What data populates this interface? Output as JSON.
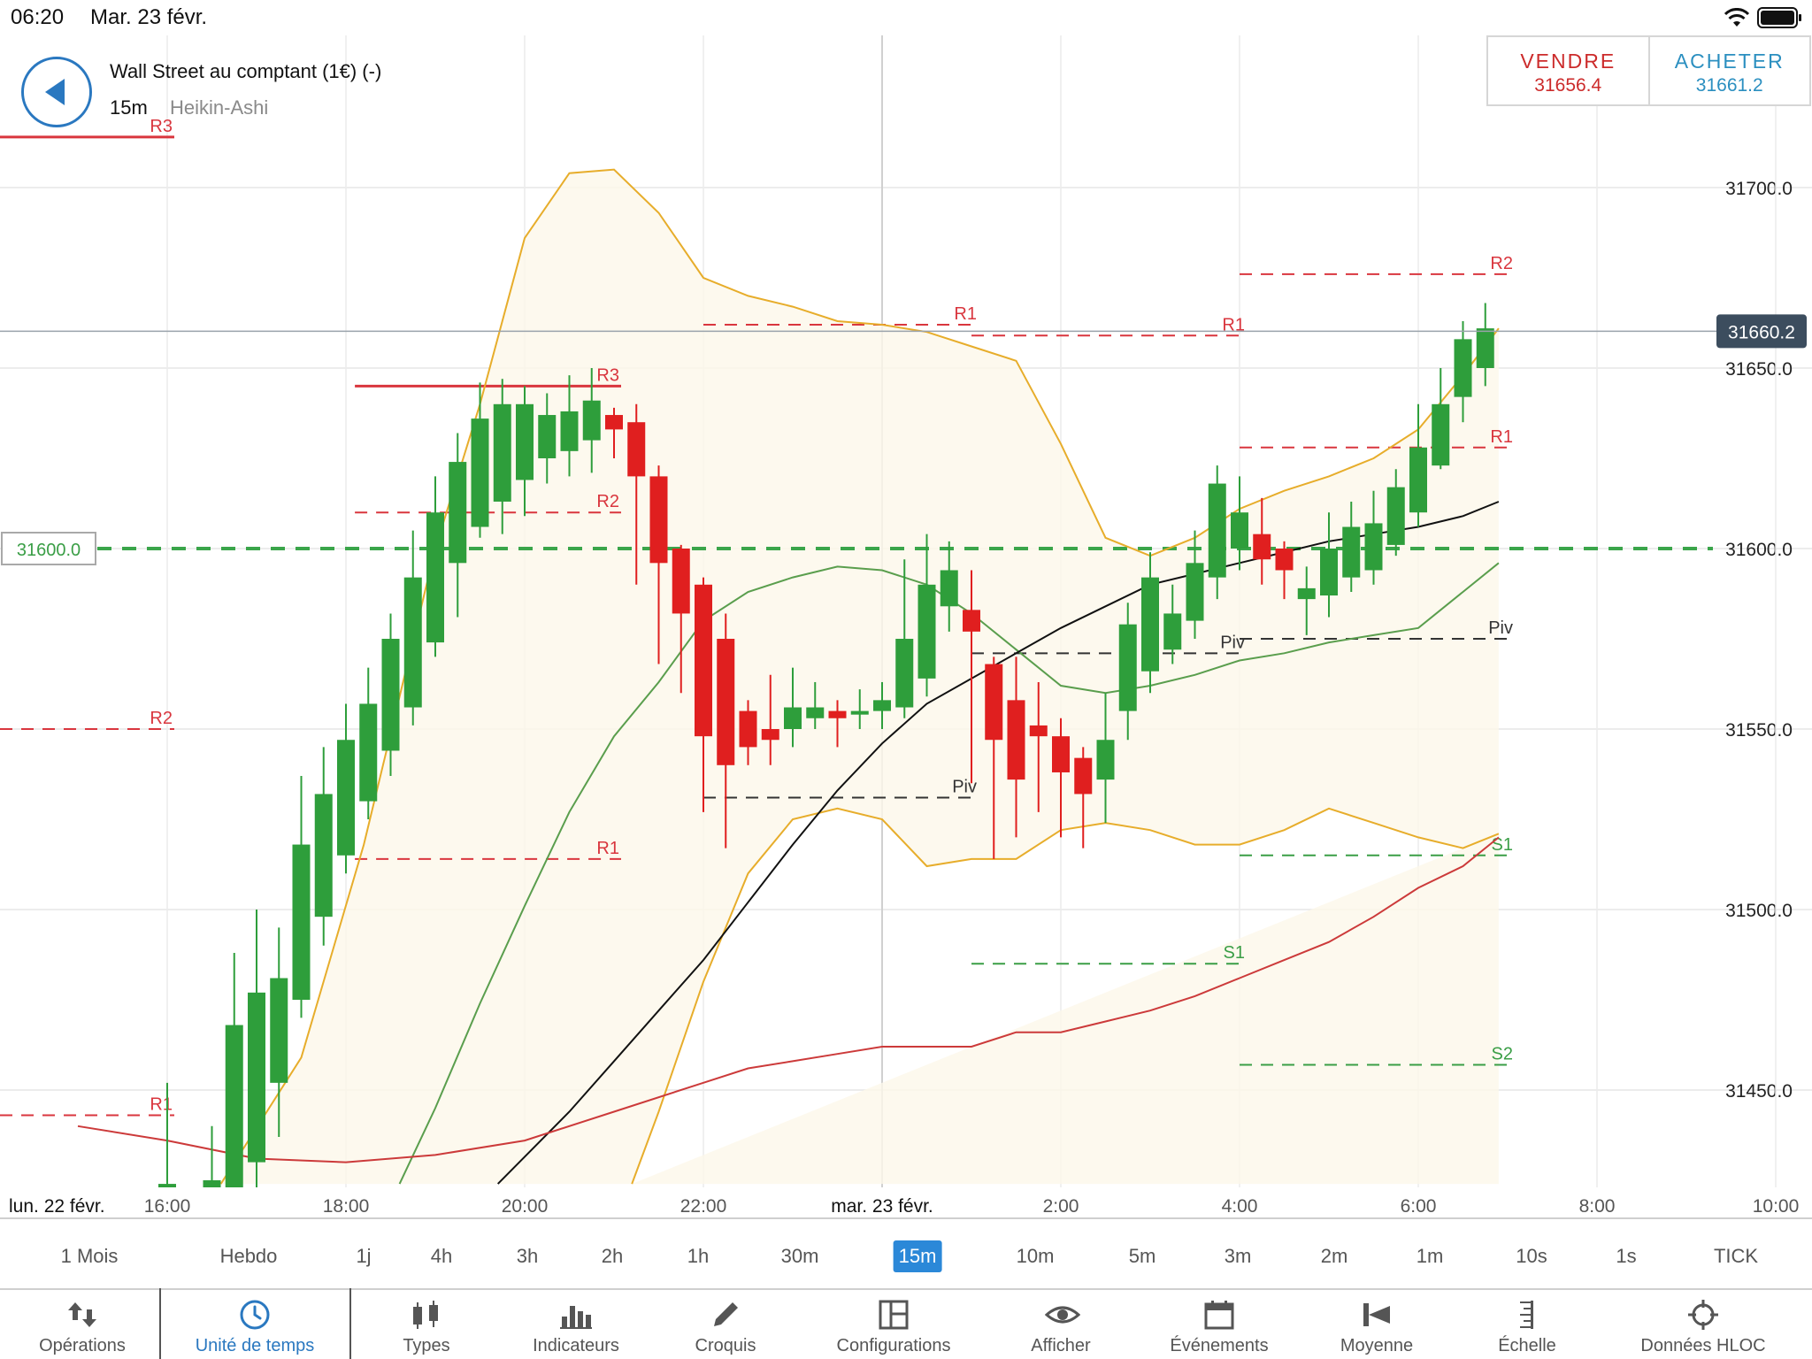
{
  "status_bar": {
    "time": "06:20",
    "date": "Mar. 23 févr."
  },
  "header": {
    "instrument": "Wall Street au comptant (1€) (-)",
    "timeframe": "15m",
    "chart_type": "Heikin-Ashi"
  },
  "trade": {
    "sell_label": "VENDRE",
    "sell_price": "31656.4",
    "buy_label": "ACHETER",
    "buy_price": "31661.2"
  },
  "chart_data": {
    "type": "candlestick",
    "style": "Heikin-Ashi",
    "interval": "15m",
    "ylim": [
      31424,
      31733
    ],
    "y_ticks": [
      "31700.0",
      "31650.0",
      "31600.0",
      "31550.0",
      "31500.0",
      "31450.0"
    ],
    "x_labels": [
      {
        "label": "lun. 22 févr.",
        "h": 15.1
      },
      {
        "label": "16:00",
        "h": 16
      },
      {
        "label": "18:00",
        "h": 18
      },
      {
        "label": "20:00",
        "h": 20
      },
      {
        "label": "22:00",
        "h": 22
      },
      {
        "label": "mar. 23 févr.",
        "h": 24
      },
      {
        "label": "2:00",
        "h": 26
      },
      {
        "label": "4:00",
        "h": 28
      },
      {
        "label": "6:00",
        "h": 30
      },
      {
        "label": "8:00",
        "h": 32
      },
      {
        "label": "10:00",
        "h": 34
      }
    ],
    "current_price": "31660.2",
    "current_price_value": 31660.2,
    "alert_price": "31600.0",
    "alert_price_value": 31600,
    "candles": [
      {
        "t": 16.0,
        "o": 31400,
        "c": 31424,
        "h": 31452,
        "l": 31380
      },
      {
        "t": 16.5,
        "o": 31408,
        "c": 31425,
        "h": 31440,
        "l": 31400
      },
      {
        "t": 16.75,
        "o": 31418,
        "c": 31468,
        "h": 31488,
        "l": 31410
      },
      {
        "t": 17.0,
        "o": 31430,
        "c": 31477,
        "h": 31500,
        "l": 31418
      },
      {
        "t": 17.25,
        "o": 31452,
        "c": 31481,
        "h": 31495,
        "l": 31437
      },
      {
        "t": 17.5,
        "o": 31475,
        "c": 31518,
        "h": 31537,
        "l": 31470
      },
      {
        "t": 17.75,
        "o": 31498,
        "c": 31532,
        "h": 31545,
        "l": 31490
      },
      {
        "t": 18.0,
        "o": 31515,
        "c": 31547,
        "h": 31557,
        "l": 31510
      },
      {
        "t": 18.25,
        "o": 31530,
        "c": 31557,
        "h": 31567,
        "l": 31525
      },
      {
        "t": 18.5,
        "o": 31544,
        "c": 31575,
        "h": 31582,
        "l": 31537
      },
      {
        "t": 18.75,
        "o": 31556,
        "c": 31592,
        "h": 31605,
        "l": 31551
      },
      {
        "t": 19.0,
        "o": 31574,
        "c": 31610,
        "h": 31620,
        "l": 31570
      },
      {
        "t": 19.25,
        "o": 31596,
        "c": 31624,
        "h": 31632,
        "l": 31581
      },
      {
        "t": 19.5,
        "o": 31606,
        "c": 31636,
        "h": 31646,
        "l": 31603
      },
      {
        "t": 19.75,
        "o": 31613,
        "c": 31640,
        "h": 31647,
        "l": 31604
      },
      {
        "t": 20.0,
        "o": 31619,
        "c": 31640,
        "h": 31645,
        "l": 31609
      },
      {
        "t": 20.25,
        "o": 31625,
        "c": 31637,
        "h": 31643,
        "l": 31618
      },
      {
        "t": 20.5,
        "o": 31627,
        "c": 31638,
        "h": 31648,
        "l": 31620
      },
      {
        "t": 20.75,
        "o": 31630,
        "c": 31641,
        "h": 31650,
        "l": 31621
      },
      {
        "t": 21.0,
        "o": 31637,
        "c": 31633,
        "h": 31639,
        "l": 31625
      },
      {
        "t": 21.25,
        "o": 31635,
        "c": 31620,
        "h": 31640,
        "l": 31590
      },
      {
        "t": 21.5,
        "o": 31620,
        "c": 31596,
        "h": 31623,
        "l": 31568
      },
      {
        "t": 21.75,
        "o": 31600,
        "c": 31582,
        "h": 31601,
        "l": 31560
      },
      {
        "t": 22.0,
        "o": 31590,
        "c": 31548,
        "h": 31592,
        "l": 31527
      },
      {
        "t": 22.25,
        "o": 31575,
        "c": 31540,
        "h": 31582,
        "l": 31517
      },
      {
        "t": 22.5,
        "o": 31555,
        "c": 31545,
        "h": 31558,
        "l": 31540
      },
      {
        "t": 22.75,
        "o": 31550,
        "c": 31547,
        "h": 31565,
        "l": 31540
      },
      {
        "t": 23.0,
        "o": 31550,
        "c": 31556,
        "h": 31567,
        "l": 31545
      },
      {
        "t": 23.25,
        "o": 31553,
        "c": 31556,
        "h": 31563,
        "l": 31550
      },
      {
        "t": 23.5,
        "o": 31555,
        "c": 31553,
        "h": 31558,
        "l": 31545
      },
      {
        "t": 23.75,
        "o": 31554,
        "c": 31555,
        "h": 31561,
        "l": 31550
      },
      {
        "t": 24.0,
        "o": 31555,
        "c": 31558,
        "h": 31563,
        "l": 31550
      },
      {
        "t": 24.25,
        "o": 31556,
        "c": 31575,
        "h": 31597,
        "l": 31553
      },
      {
        "t": 24.5,
        "o": 31564,
        "c": 31590,
        "h": 31604,
        "l": 31559
      },
      {
        "t": 24.75,
        "o": 31584,
        "c": 31594,
        "h": 31602,
        "l": 31577
      },
      {
        "t": 25.0,
        "o": 31583,
        "c": 31577,
        "h": 31594,
        "l": 31535
      },
      {
        "t": 25.25,
        "o": 31568,
        "c": 31547,
        "h": 31570,
        "l": 31514
      },
      {
        "t": 25.5,
        "o": 31558,
        "c": 31536,
        "h": 31570,
        "l": 31520
      },
      {
        "t": 25.75,
        "o": 31551,
        "c": 31548,
        "h": 31563,
        "l": 31527
      },
      {
        "t": 26.0,
        "o": 31548,
        "c": 31538,
        "h": 31553,
        "l": 31520
      },
      {
        "t": 26.25,
        "o": 31542,
        "c": 31532,
        "h": 31545,
        "l": 31517
      },
      {
        "t": 26.5,
        "o": 31536,
        "c": 31547,
        "h": 31560,
        "l": 31524
      },
      {
        "t": 26.75,
        "o": 31555,
        "c": 31579,
        "h": 31585,
        "l": 31547
      },
      {
        "t": 27.0,
        "o": 31566,
        "c": 31592,
        "h": 31599,
        "l": 31560
      },
      {
        "t": 27.25,
        "o": 31572,
        "c": 31582,
        "h": 31590,
        "l": 31568
      },
      {
        "t": 27.5,
        "o": 31580,
        "c": 31596,
        "h": 31605,
        "l": 31575
      },
      {
        "t": 27.75,
        "o": 31592,
        "c": 31618,
        "h": 31623,
        "l": 31586
      },
      {
        "t": 28.0,
        "o": 31600,
        "c": 31610,
        "h": 31620,
        "l": 31594
      },
      {
        "t": 28.25,
        "o": 31604,
        "c": 31597,
        "h": 31614,
        "l": 31590
      },
      {
        "t": 28.5,
        "o": 31600,
        "c": 31594,
        "h": 31602,
        "l": 31586
      },
      {
        "t": 28.75,
        "o": 31586,
        "c": 31589,
        "h": 31595,
        "l": 31576
      },
      {
        "t": 29.0,
        "o": 31587,
        "c": 31600,
        "h": 31610,
        "l": 31581
      },
      {
        "t": 29.25,
        "o": 31592,
        "c": 31606,
        "h": 31613,
        "l": 31588
      },
      {
        "t": 29.5,
        "o": 31594,
        "c": 31607,
        "h": 31616,
        "l": 31590
      },
      {
        "t": 29.75,
        "o": 31601,
        "c": 31617,
        "h": 31622,
        "l": 31598
      },
      {
        "t": 30.0,
        "o": 31610,
        "c": 31628,
        "h": 31640,
        "l": 31606
      },
      {
        "t": 30.25,
        "o": 31623,
        "c": 31640,
        "h": 31650,
        "l": 31622
      },
      {
        "t": 30.5,
        "o": 31642,
        "c": 31658,
        "h": 31663,
        "l": 31635
      },
      {
        "t": 30.75,
        "o": 31650,
        "c": 31661,
        "h": 31668,
        "l": 31645
      }
    ],
    "bollinger": {
      "upper": [
        [
          16.6,
          31424
        ],
        [
          17.5,
          31459
        ],
        [
          18.2,
          31518
        ],
        [
          19.0,
          31600
        ],
        [
          19.5,
          31640
        ],
        [
          20.0,
          31686
        ],
        [
          20.5,
          31704
        ],
        [
          21.0,
          31705
        ],
        [
          21.5,
          31693
        ],
        [
          22.0,
          31675
        ],
        [
          22.5,
          31670
        ],
        [
          23.0,
          31667
        ],
        [
          23.5,
          31663
        ],
        [
          24.0,
          31662
        ],
        [
          24.5,
          31660
        ],
        [
          25.0,
          31656
        ],
        [
          25.5,
          31652
        ],
        [
          26.0,
          31629
        ],
        [
          26.5,
          31603
        ],
        [
          27.0,
          31598
        ],
        [
          27.5,
          31603
        ],
        [
          28.0,
          31611
        ],
        [
          28.5,
          31616
        ],
        [
          29.0,
          31620
        ],
        [
          29.5,
          31625
        ],
        [
          30.0,
          31633
        ],
        [
          30.5,
          31648
        ],
        [
          30.9,
          31661
        ]
      ],
      "lower": [
        [
          21.2,
          31424
        ],
        [
          21.5,
          31444
        ],
        [
          22.0,
          31480
        ],
        [
          22.5,
          31510
        ],
        [
          23.0,
          31525
        ],
        [
          23.5,
          31528
        ],
        [
          24.0,
          31525
        ],
        [
          24.5,
          31512
        ],
        [
          25.0,
          31514
        ],
        [
          25.5,
          31514
        ],
        [
          26.0,
          31522
        ],
        [
          26.5,
          31524
        ],
        [
          27.0,
          31522
        ],
        [
          27.5,
          31518
        ],
        [
          28.0,
          31518
        ],
        [
          28.5,
          31522
        ],
        [
          29.0,
          31528
        ],
        [
          29.5,
          31524
        ],
        [
          30.0,
          31520
        ],
        [
          30.5,
          31517
        ],
        [
          30.9,
          31521
        ]
      ],
      "middle": [
        [
          18.6,
          31424
        ],
        [
          19.0,
          31445
        ],
        [
          19.5,
          31474
        ],
        [
          20.0,
          31501
        ],
        [
          20.5,
          31527
        ],
        [
          21.0,
          31548
        ],
        [
          21.5,
          31563
        ],
        [
          22.0,
          31580
        ],
        [
          22.5,
          31588
        ],
        [
          23.0,
          31592
        ],
        [
          23.5,
          31595
        ],
        [
          24.0,
          31594
        ],
        [
          24.5,
          31590
        ],
        [
          25.0,
          31582
        ],
        [
          25.5,
          31572
        ],
        [
          26.0,
          31562
        ],
        [
          26.5,
          31560
        ],
        [
          27.0,
          31562
        ],
        [
          27.5,
          31565
        ],
        [
          28.0,
          31569
        ],
        [
          28.5,
          31571
        ],
        [
          29.0,
          31574
        ],
        [
          29.5,
          31576
        ],
        [
          30.0,
          31578
        ],
        [
          30.5,
          31588
        ],
        [
          30.9,
          31596
        ]
      ]
    },
    "ma_black": [
      [
        19.7,
        31424
      ],
      [
        20.5,
        31444
      ],
      [
        21.0,
        31458
      ],
      [
        21.5,
        31472
      ],
      [
        22.0,
        31486
      ],
      [
        22.5,
        31502
      ],
      [
        23.0,
        31518
      ],
      [
        23.5,
        31533
      ],
      [
        24.0,
        31546
      ],
      [
        24.5,
        31557
      ],
      [
        25.0,
        31564
      ],
      [
        25.5,
        31571
      ],
      [
        26.0,
        31578
      ],
      [
        26.5,
        31584
      ],
      [
        27.0,
        31590
      ],
      [
        27.5,
        31593
      ],
      [
        28.0,
        31596
      ],
      [
        28.5,
        31599
      ],
      [
        29.0,
        31602
      ],
      [
        29.5,
        31604
      ],
      [
        30.0,
        31606
      ],
      [
        30.5,
        31609
      ],
      [
        30.9,
        31613
      ]
    ],
    "ma_red": [
      [
        15.0,
        31440
      ],
      [
        16.0,
        31436
      ],
      [
        17.0,
        31431
      ],
      [
        18.0,
        31430
      ],
      [
        19.0,
        31432
      ],
      [
        20.0,
        31436
      ],
      [
        21.0,
        31444
      ],
      [
        22.0,
        31452
      ],
      [
        22.5,
        31456
      ],
      [
        23.0,
        31458
      ],
      [
        23.5,
        31460
      ],
      [
        24.0,
        31462
      ],
      [
        24.5,
        31462
      ],
      [
        25.0,
        31462
      ],
      [
        25.5,
        31466
      ],
      [
        26.0,
        31466
      ],
      [
        26.5,
        31469
      ],
      [
        27.0,
        31472
      ],
      [
        27.5,
        31476
      ],
      [
        28.0,
        31481
      ],
      [
        28.5,
        31486
      ],
      [
        29.0,
        31491
      ],
      [
        29.5,
        31498
      ],
      [
        30.0,
        31506
      ],
      [
        30.5,
        31512
      ],
      [
        30.9,
        31520
      ]
    ],
    "pivot_levels": [
      {
        "label": "R3",
        "value": 31714,
        "h0": 15.0,
        "h1": 16.0,
        "color": "red",
        "style": "solid"
      },
      {
        "label": "R3",
        "value": 31645,
        "h0": 18.1,
        "h1": 21.0,
        "color": "red",
        "style": "solid"
      },
      {
        "label": "R2",
        "value": 31550,
        "h0": 15.0,
        "h1": 16.0,
        "color": "red",
        "style": "dash"
      },
      {
        "label": "R1",
        "value": 31443,
        "h0": 15.0,
        "h1": 16.0,
        "color": "red",
        "style": "dash"
      },
      {
        "label": "R2",
        "value": 31610,
        "h0": 18.1,
        "h1": 21.0,
        "color": "red",
        "style": "dash"
      },
      {
        "label": "R1",
        "value": 31514,
        "h0": 18.1,
        "h1": 21.0,
        "color": "red",
        "style": "dash"
      },
      {
        "label": "R1",
        "value": 31662,
        "h0": 22.0,
        "h1": 25.0,
        "color": "red",
        "style": "dash"
      },
      {
        "label": "Piv",
        "value": 31531,
        "h0": 22.0,
        "h1": 25.0,
        "color": "black",
        "style": "dash"
      },
      {
        "label": "R1",
        "value": 31659,
        "h0": 25.0,
        "h1": 28.0,
        "color": "red",
        "style": "dash"
      },
      {
        "label": "Piv",
        "value": 31571,
        "h0": 25.0,
        "h1": 28.0,
        "color": "black",
        "style": "dash"
      },
      {
        "label": "S1",
        "value": 31485,
        "h0": 25.0,
        "h1": 28.0,
        "color": "green",
        "style": "dash"
      },
      {
        "label": "R2",
        "value": 31676,
        "h0": 28.0,
        "h1": 31.0,
        "color": "red",
        "style": "dash"
      },
      {
        "label": "R1",
        "value": 31628,
        "h0": 28.0,
        "h1": 31.0,
        "color": "red",
        "style": "dash"
      },
      {
        "label": "Piv",
        "value": 31575,
        "h0": 28.0,
        "h1": 31.0,
        "color": "black",
        "style": "dash"
      },
      {
        "label": "S1",
        "value": 31515,
        "h0": 28.0,
        "h1": 31.0,
        "color": "green",
        "style": "dash"
      },
      {
        "label": "S2",
        "value": 31457,
        "h0": 28.0,
        "h1": 31.0,
        "color": "green",
        "style": "dash"
      }
    ],
    "colors": {
      "up": "#2e9e3b",
      "down": "#e01f1f",
      "bollinger": "#e7ad2b",
      "middle": "#5a9e4d",
      "ma_black": "#111111",
      "ma_red": "#cc3a3a"
    }
  },
  "timeframes": [
    {
      "label": "1 Mois",
      "active": false
    },
    {
      "label": "Hebdo",
      "active": false
    },
    {
      "label": "1j",
      "active": false
    },
    {
      "label": "4h",
      "active": false
    },
    {
      "label": "3h",
      "active": false
    },
    {
      "label": "2h",
      "active": false
    },
    {
      "label": "1h",
      "active": false
    },
    {
      "label": "30m",
      "active": false
    },
    {
      "label": "15m",
      "active": true
    },
    {
      "label": "10m",
      "active": false
    },
    {
      "label": "5m",
      "active": false
    },
    {
      "label": "3m",
      "active": false
    },
    {
      "label": "2m",
      "active": false
    },
    {
      "label": "1m",
      "active": false
    },
    {
      "label": "10s",
      "active": false
    },
    {
      "label": "1s",
      "active": false
    },
    {
      "label": "TICK",
      "active": false
    }
  ],
  "toolbar": [
    {
      "label": "Opérations",
      "icon": "operations-icon"
    },
    {
      "label": "Unité de temps",
      "icon": "clock-icon",
      "active": true
    },
    {
      "label": "Types",
      "icon": "candles-icon"
    },
    {
      "label": "Indicateurs",
      "icon": "bar-chart-icon"
    },
    {
      "label": "Croquis",
      "icon": "pencil-icon"
    },
    {
      "label": "Configurations",
      "icon": "layout-icon"
    },
    {
      "label": "Afficher",
      "icon": "eye-icon"
    },
    {
      "label": "Événements",
      "icon": "calendar-icon"
    },
    {
      "label": "Moyenne",
      "icon": "average-icon"
    },
    {
      "label": "Échelle",
      "icon": "scale-icon"
    },
    {
      "label": "Données HLOC",
      "icon": "crosshair-icon"
    }
  ]
}
